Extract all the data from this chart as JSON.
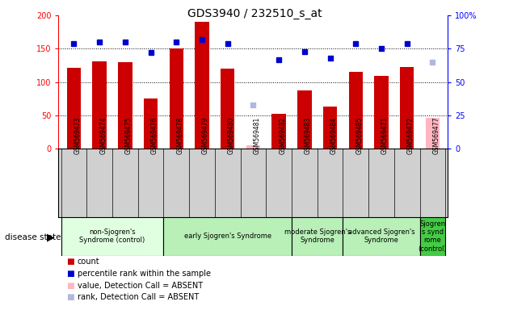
{
  "title": "GDS3940 / 232510_s_at",
  "samples": [
    "GSM569473",
    "GSM569474",
    "GSM569475",
    "GSM569476",
    "GSM569478",
    "GSM569479",
    "GSM569480",
    "GSM569481",
    "GSM569482",
    "GSM569483",
    "GSM569484",
    "GSM569485",
    "GSM569471",
    "GSM569472",
    "GSM569477"
  ],
  "counts": [
    122,
    131,
    130,
    76,
    150,
    190,
    120,
    null,
    52,
    88,
    63,
    115,
    109,
    123,
    null
  ],
  "percentile_ranks": [
    79,
    80,
    80,
    72,
    80,
    82,
    79,
    null,
    67,
    73,
    68,
    79,
    75,
    79,
    null
  ],
  "absent_value": [
    null,
    null,
    null,
    null,
    null,
    null,
    null,
    5,
    null,
    null,
    null,
    null,
    null,
    null,
    46
  ],
  "absent_rank": [
    null,
    null,
    null,
    null,
    null,
    null,
    null,
    33,
    null,
    null,
    null,
    null,
    null,
    null,
    65
  ],
  "absent_flags": [
    false,
    false,
    false,
    false,
    false,
    false,
    false,
    true,
    false,
    false,
    false,
    false,
    false,
    false,
    true
  ],
  "group_configs": [
    {
      "label": "non-Sjogren's\nSyndrome (control)",
      "start": 0,
      "end": 3,
      "color": "#e0ffe0"
    },
    {
      "label": "early Sjogren's Syndrome",
      "start": 4,
      "end": 8,
      "color": "#b8f0b8"
    },
    {
      "label": "moderate Sjogren's\nSyndrome",
      "start": 9,
      "end": 10,
      "color": "#b8f0b8"
    },
    {
      "label": "advanced Sjogren's\nSyndrome",
      "start": 11,
      "end": 13,
      "color": "#b8f0b8"
    },
    {
      "label": "Sjogren\ns synd\nrome\n(control)",
      "start": 14,
      "end": 14,
      "color": "#44cc44"
    }
  ],
  "ylim_left": [
    0,
    200
  ],
  "ylim_right": [
    0,
    100
  ],
  "bar_color": "#cc0000",
  "dot_color": "#0000cc",
  "absent_bar_color": "#ffb6c1",
  "absent_dot_color": "#b0b8e0",
  "yticks_left": [
    0,
    50,
    100,
    150,
    200
  ],
  "yticks_right": [
    0,
    25,
    50,
    75,
    100
  ],
  "ytick_labels_right": [
    "0",
    "25",
    "50",
    "75",
    "100%"
  ]
}
